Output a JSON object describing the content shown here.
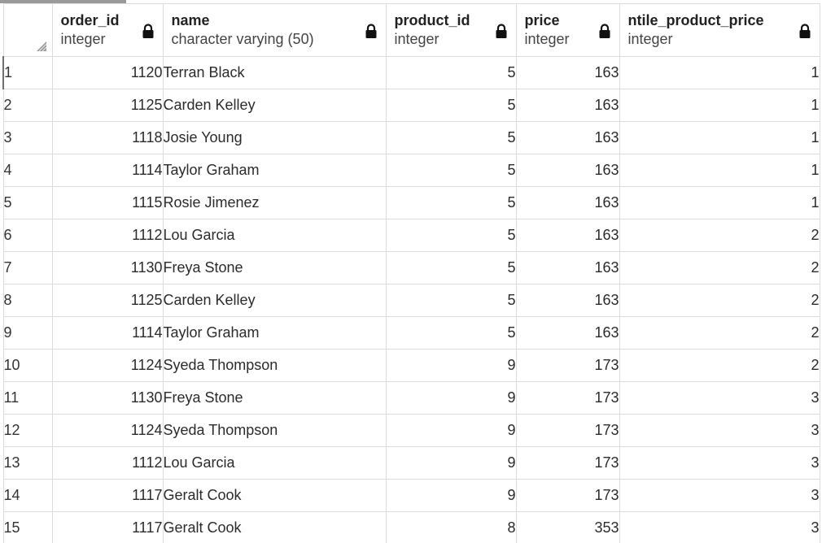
{
  "columns": [
    {
      "name": "order_id",
      "type": "integer",
      "align": "right",
      "key": "order_id"
    },
    {
      "name": "name",
      "type": "character varying (50)",
      "align": "left",
      "key": "name"
    },
    {
      "name": "product_id",
      "type": "integer",
      "align": "right",
      "key": "product_id"
    },
    {
      "name": "price",
      "type": "integer",
      "align": "right",
      "key": "price"
    },
    {
      "name": "ntile_product_price",
      "type": "integer",
      "align": "right",
      "key": "ntile_product_price"
    }
  ],
  "header_icons": {
    "column": "lock-icon",
    "corner": "resize-grip-icon"
  },
  "rows": [
    {
      "row": "1",
      "order_id": "1120",
      "name": "Terran Black",
      "product_id": "5",
      "price": "163",
      "ntile_product_price": "1"
    },
    {
      "row": "2",
      "order_id": "1125",
      "name": "Carden Kelley",
      "product_id": "5",
      "price": "163",
      "ntile_product_price": "1"
    },
    {
      "row": "3",
      "order_id": "1118",
      "name": "Josie Young",
      "product_id": "5",
      "price": "163",
      "ntile_product_price": "1"
    },
    {
      "row": "4",
      "order_id": "1114",
      "name": "Taylor Graham",
      "product_id": "5",
      "price": "163",
      "ntile_product_price": "1"
    },
    {
      "row": "5",
      "order_id": "1115",
      "name": "Rosie Jimenez",
      "product_id": "5",
      "price": "163",
      "ntile_product_price": "1"
    },
    {
      "row": "6",
      "order_id": "1112",
      "name": "Lou Garcia",
      "product_id": "5",
      "price": "163",
      "ntile_product_price": "2"
    },
    {
      "row": "7",
      "order_id": "1130",
      "name": "Freya Stone",
      "product_id": "5",
      "price": "163",
      "ntile_product_price": "2"
    },
    {
      "row": "8",
      "order_id": "1125",
      "name": "Carden Kelley",
      "product_id": "5",
      "price": "163",
      "ntile_product_price": "2"
    },
    {
      "row": "9",
      "order_id": "1114",
      "name": "Taylor Graham",
      "product_id": "5",
      "price": "163",
      "ntile_product_price": "2"
    },
    {
      "row": "10",
      "order_id": "1124",
      "name": "Syeda Thompson",
      "product_id": "9",
      "price": "173",
      "ntile_product_price": "2"
    },
    {
      "row": "11",
      "order_id": "1130",
      "name": "Freya Stone",
      "product_id": "9",
      "price": "173",
      "ntile_product_price": "3"
    },
    {
      "row": "12",
      "order_id": "1124",
      "name": "Syeda Thompson",
      "product_id": "9",
      "price": "173",
      "ntile_product_price": "3"
    },
    {
      "row": "13",
      "order_id": "1112",
      "name": "Lou Garcia",
      "product_id": "9",
      "price": "173",
      "ntile_product_price": "3"
    },
    {
      "row": "14",
      "order_id": "1117",
      "name": "Geralt Cook",
      "product_id": "9",
      "price": "173",
      "ntile_product_price": "3"
    },
    {
      "row": "15",
      "order_id": "1117",
      "name": "Geralt Cook",
      "product_id": "8",
      "price": "353",
      "ntile_product_price": "3"
    }
  ],
  "colors": {
    "grid_line": "#dcdcdc",
    "selected_row_marker": "#6f6f6f",
    "text": "#2b2b2b"
  }
}
